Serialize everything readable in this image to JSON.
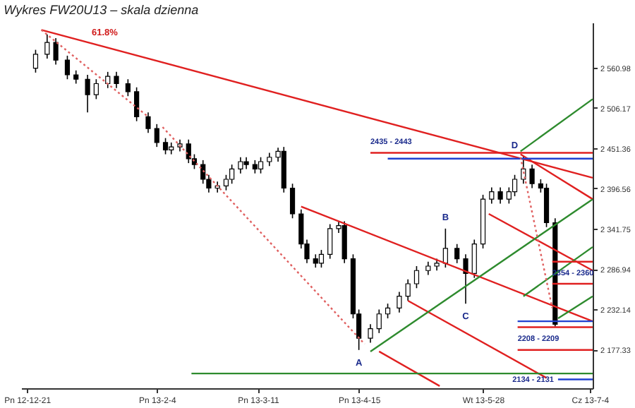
{
  "chart_data": {
    "type": "candlestick",
    "title": "Wykres FW20U13 – skala dzienna",
    "x": [
      "2012-12-24",
      "2012-12-28",
      "2012-12-31",
      "2013-01-04",
      "2013-01-07",
      "2013-01-11",
      "2013-01-14",
      "2013-01-18",
      "2013-01-21",
      "2013-01-25",
      "2013-01-28",
      "2013-02-01",
      "2013-02-04",
      "2013-02-07",
      "2013-02-09",
      "2013-02-12",
      "2013-02-15",
      "2013-02-17",
      "2013-02-20",
      "2013-02-22",
      "2013-02-25",
      "2013-02-28",
      "2013-03-02",
      "2013-03-05",
      "2013-03-07",
      "2013-03-10",
      "2013-03-12",
      "2013-03-15",
      "2013-03-18",
      "2013-03-20",
      "2013-03-23",
      "2013-03-26",
      "2013-03-28",
      "2013-03-31",
      "2013-04-02",
      "2013-04-05",
      "2013-04-08",
      "2013-04-10",
      "2013-04-13",
      "2013-04-15",
      "2013-04-19",
      "2013-04-22",
      "2013-04-25",
      "2013-04-29",
      "2013-05-02",
      "2013-05-05",
      "2013-05-09",
      "2013-05-12",
      "2013-05-15",
      "2013-05-19",
      "2013-05-22",
      "2013-05-25",
      "2013-05-28",
      "2013-05-31",
      "2013-06-03",
      "2013-06-06",
      "2013-06-08",
      "2013-06-11",
      "2013-06-14",
      "2013-06-17",
      "2013-06-19",
      "2013-06-22"
    ],
    "ohlc": [
      [
        2560,
        2585,
        2554,
        2579
      ],
      [
        2579,
        2606,
        2573,
        2595
      ],
      [
        2595,
        2601,
        2565,
        2571
      ],
      [
        2571,
        2577,
        2545,
        2551
      ],
      [
        2551,
        2557,
        2539,
        2545
      ],
      [
        2545,
        2551,
        2500,
        2524
      ],
      [
        2524,
        2545,
        2518,
        2539
      ],
      [
        2539,
        2555,
        2533,
        2549
      ],
      [
        2549,
        2555,
        2533,
        2539
      ],
      [
        2539,
        2545,
        2522,
        2528
      ],
      [
        2528,
        2534,
        2488,
        2494
      ],
      [
        2494,
        2500,
        2472,
        2478
      ],
      [
        2478,
        2484,
        2453,
        2459
      ],
      [
        2459,
        2465,
        2443,
        2449
      ],
      [
        2449,
        2459,
        2443,
        2453
      ],
      [
        2453,
        2463,
        2447,
        2457
      ],
      [
        2457,
        2463,
        2431,
        2437
      ],
      [
        2437,
        2443,
        2423,
        2429
      ],
      [
        2429,
        2435,
        2403,
        2409
      ],
      [
        2409,
        2415,
        2391,
        2397
      ],
      [
        2397,
        2406,
        2391,
        2400
      ],
      [
        2400,
        2415,
        2394,
        2409
      ],
      [
        2409,
        2429,
        2403,
        2423
      ],
      [
        2423,
        2439,
        2417,
        2433
      ],
      [
        2433,
        2439,
        2423,
        2429
      ],
      [
        2429,
        2435,
        2417,
        2423
      ],
      [
        2423,
        2439,
        2417,
        2433
      ],
      [
        2433,
        2445,
        2427,
        2439
      ],
      [
        2439,
        2452,
        2433,
        2447
      ],
      [
        2447,
        2453,
        2391,
        2397
      ],
      [
        2397,
        2403,
        2356,
        2362
      ],
      [
        2362,
        2368,
        2315,
        2321
      ],
      [
        2321,
        2327,
        2295,
        2301
      ],
      [
        2301,
        2307,
        2289,
        2295
      ],
      [
        2295,
        2313,
        2289,
        2307
      ],
      [
        2307,
        2348,
        2301,
        2342
      ],
      [
        2342,
        2352,
        2336,
        2346
      ],
      [
        2346,
        2352,
        2295,
        2301
      ],
      [
        2301,
        2307,
        2220,
        2226
      ],
      [
        2226,
        2232,
        2177,
        2193
      ],
      [
        2193,
        2212,
        2187,
        2206
      ],
      [
        2206,
        2232,
        2200,
        2226
      ],
      [
        2226,
        2240,
        2220,
        2234
      ],
      [
        2234,
        2256,
        2228,
        2250
      ],
      [
        2250,
        2273,
        2244,
        2267
      ],
      [
        2267,
        2291,
        2261,
        2285
      ],
      [
        2285,
        2297,
        2279,
        2291
      ],
      [
        2291,
        2301,
        2285,
        2295
      ],
      [
        2295,
        2342,
        2289,
        2315
      ],
      [
        2315,
        2321,
        2295,
        2301
      ],
      [
        2301,
        2307,
        2240,
        2281
      ],
      [
        2281,
        2327,
        2275,
        2321
      ],
      [
        2321,
        2388,
        2315,
        2382
      ],
      [
        2382,
        2398,
        2376,
        2392
      ],
      [
        2392,
        2398,
        2376,
        2382
      ],
      [
        2382,
        2398,
        2376,
        2392
      ],
      [
        2392,
        2415,
        2386,
        2409
      ],
      [
        2409,
        2440,
        2403,
        2423
      ],
      [
        2423,
        2429,
        2397,
        2403
      ],
      [
        2403,
        2409,
        2391,
        2397
      ],
      [
        2397,
        2403,
        2344,
        2350
      ],
      [
        2350,
        2356,
        2209,
        2212
      ]
    ],
    "series": [
      {
        "type": "line",
        "color": "#e02020",
        "x": [
          "2012-12-26",
          "2013-07-05"
        ],
        "values": [
          2612,
          2411
        ]
      },
      {
        "type": "line",
        "color": "#e02020",
        "x": [
          "2013-03-26",
          "2013-07-05"
        ],
        "values": [
          2372,
          2216
        ]
      },
      {
        "type": "line",
        "color": "#e02020",
        "x": [
          "2013-05-02",
          "2013-06-19"
        ],
        "values": [
          2244,
          2139
        ]
      },
      {
        "type": "line",
        "color": "#e02020",
        "x": [
          "2013-04-22",
          "2013-05-13"
        ],
        "values": [
          2175,
          2128
        ]
      },
      {
        "type": "line",
        "color": "#e02020",
        "x": [
          "2013-05-30",
          "2013-07-05"
        ],
        "values": [
          2362,
          2285
        ]
      },
      {
        "type": "line",
        "color": "#e02020",
        "x": [
          "2013-06-10",
          "2013-07-05"
        ],
        "values": [
          2443,
          2382
        ]
      },
      {
        "type": "line",
        "color": "#2e8b2e",
        "x": [
          "2013-04-19",
          "2013-07-05"
        ],
        "values": [
          2175,
          2382
        ]
      },
      {
        "type": "line",
        "color": "#2e8b2e",
        "x": [
          "2013-06-10",
          "2013-07-05"
        ],
        "values": [
          2447,
          2518
        ]
      },
      {
        "type": "line",
        "color": "#2e8b2e",
        "x": [
          "2013-06-11",
          "2013-07-05"
        ],
        "values": [
          2250,
          2317
        ]
      },
      {
        "type": "line",
        "color": "#2e8b2e",
        "x": [
          "2013-06-23",
          "2013-07-05"
        ],
        "values": [
          2220,
          2250
        ]
      },
      {
        "type": "line",
        "color": "#2e8b2e",
        "x": [
          "2013-02-16",
          "2013-07-05"
        ],
        "values": [
          2145,
          2145
        ]
      },
      {
        "type": "line",
        "color": "#e02020",
        "x": [
          "2013-04-19",
          "2013-07-05"
        ],
        "values": [
          2445,
          2445
        ]
      },
      {
        "type": "line",
        "color": "#2040d0",
        "x": [
          "2013-04-25",
          "2013-07-05"
        ],
        "values": [
          2437,
          2437
        ]
      },
      {
        "type": "line",
        "color": "#e02020",
        "x": [
          "2013-06-21",
          "2013-07-05"
        ],
        "values": [
          2297,
          2297
        ]
      },
      {
        "type": "line",
        "color": "#e02020",
        "x": [
          "2013-06-21",
          "2013-07-05"
        ],
        "values": [
          2267,
          2267
        ]
      },
      {
        "type": "line",
        "color": "#2040d0",
        "x": [
          "2013-06-09",
          "2013-07-05"
        ],
        "values": [
          2216,
          2216
        ]
      },
      {
        "type": "line",
        "color": "#e02020",
        "x": [
          "2013-06-09",
          "2013-07-05"
        ],
        "values": [
          2208,
          2208
        ]
      },
      {
        "type": "line",
        "color": "#e02020",
        "x": [
          "2013-06-09",
          "2013-07-05"
        ],
        "values": [
          2177,
          2177
        ]
      },
      {
        "type": "line",
        "color": "#2040d0",
        "x": [
          "2013-06-23",
          "2013-07-05"
        ],
        "values": [
          2137,
          2137
        ]
      },
      {
        "type": "line",
        "color": "#e06060",
        "line_style": "dotted",
        "x": [
          "2012-12-26",
          "2013-02-01"
        ],
        "values": [
          2612,
          2494
        ]
      },
      {
        "type": "line",
        "color": "#e06060",
        "line_style": "dotted",
        "x": [
          "2013-02-06",
          "2013-04-17"
        ],
        "values": [
          2480,
          2185
        ]
      },
      {
        "type": "line",
        "color": "#e06060",
        "line_style": "dotted",
        "x": [
          "2013-06-10",
          "2013-06-21"
        ],
        "values": [
          2439,
          2234
        ]
      }
    ],
    "annotations": [
      "61.8%",
      {
        "text": "A",
        "x": "2013-04-15",
        "y": 2177
      },
      {
        "text": "B",
        "x": "2013-05-15",
        "y": 2342
      },
      {
        "text": "C",
        "x": "2013-05-22",
        "y": 2240
      },
      {
        "text": "D",
        "x": "2013-06-08",
        "y": 2440
      },
      {
        "text": "2435 - 2443",
        "x": "2013-04-19",
        "y": 2445
      },
      {
        "text": "2354 - 2360",
        "x": "2013-06-21",
        "y": 2267
      },
      {
        "text": "2208 - 2209",
        "x": "2013-06-09",
        "y": 2208
      },
      {
        "text": "2134 - 2131",
        "x": "2013-06-23",
        "y": 2137
      }
    ],
    "xlim": [
      "2012-12-19",
      "2013-07-05"
    ],
    "xticks": [
      {
        "value": "2012-12-21",
        "label": "Pn 12-12-21"
      },
      {
        "value": "2013-02-04",
        "label": "Pn 13-2-4"
      },
      {
        "value": "2013-03-11",
        "label": "Pn 13-3-11"
      },
      {
        "value": "2013-04-15",
        "label": "Pn 13-4-15"
      },
      {
        "value": "2013-05-28",
        "label": "Wt 13-5-28"
      },
      {
        "value": "2013-07-04",
        "label": "Cz 13-7-4"
      }
    ],
    "ylim": [
      2125,
      2622
    ],
    "yticks": [
      {
        "value": 2177.33,
        "label": "2 177.33"
      },
      {
        "value": 2232.14,
        "label": "2 232.14"
      },
      {
        "value": 2286.94,
        "label": "2 286.94"
      },
      {
        "value": 2341.75,
        "label": "2 341.75"
      },
      {
        "value": 2396.56,
        "label": "2 396.56"
      },
      {
        "value": 2451.36,
        "label": "2 451.36"
      },
      {
        "value": 2506.17,
        "label": "2 506.17"
      },
      {
        "value": 2560.98,
        "label": "2 560.98"
      }
    ],
    "grid": false
  }
}
